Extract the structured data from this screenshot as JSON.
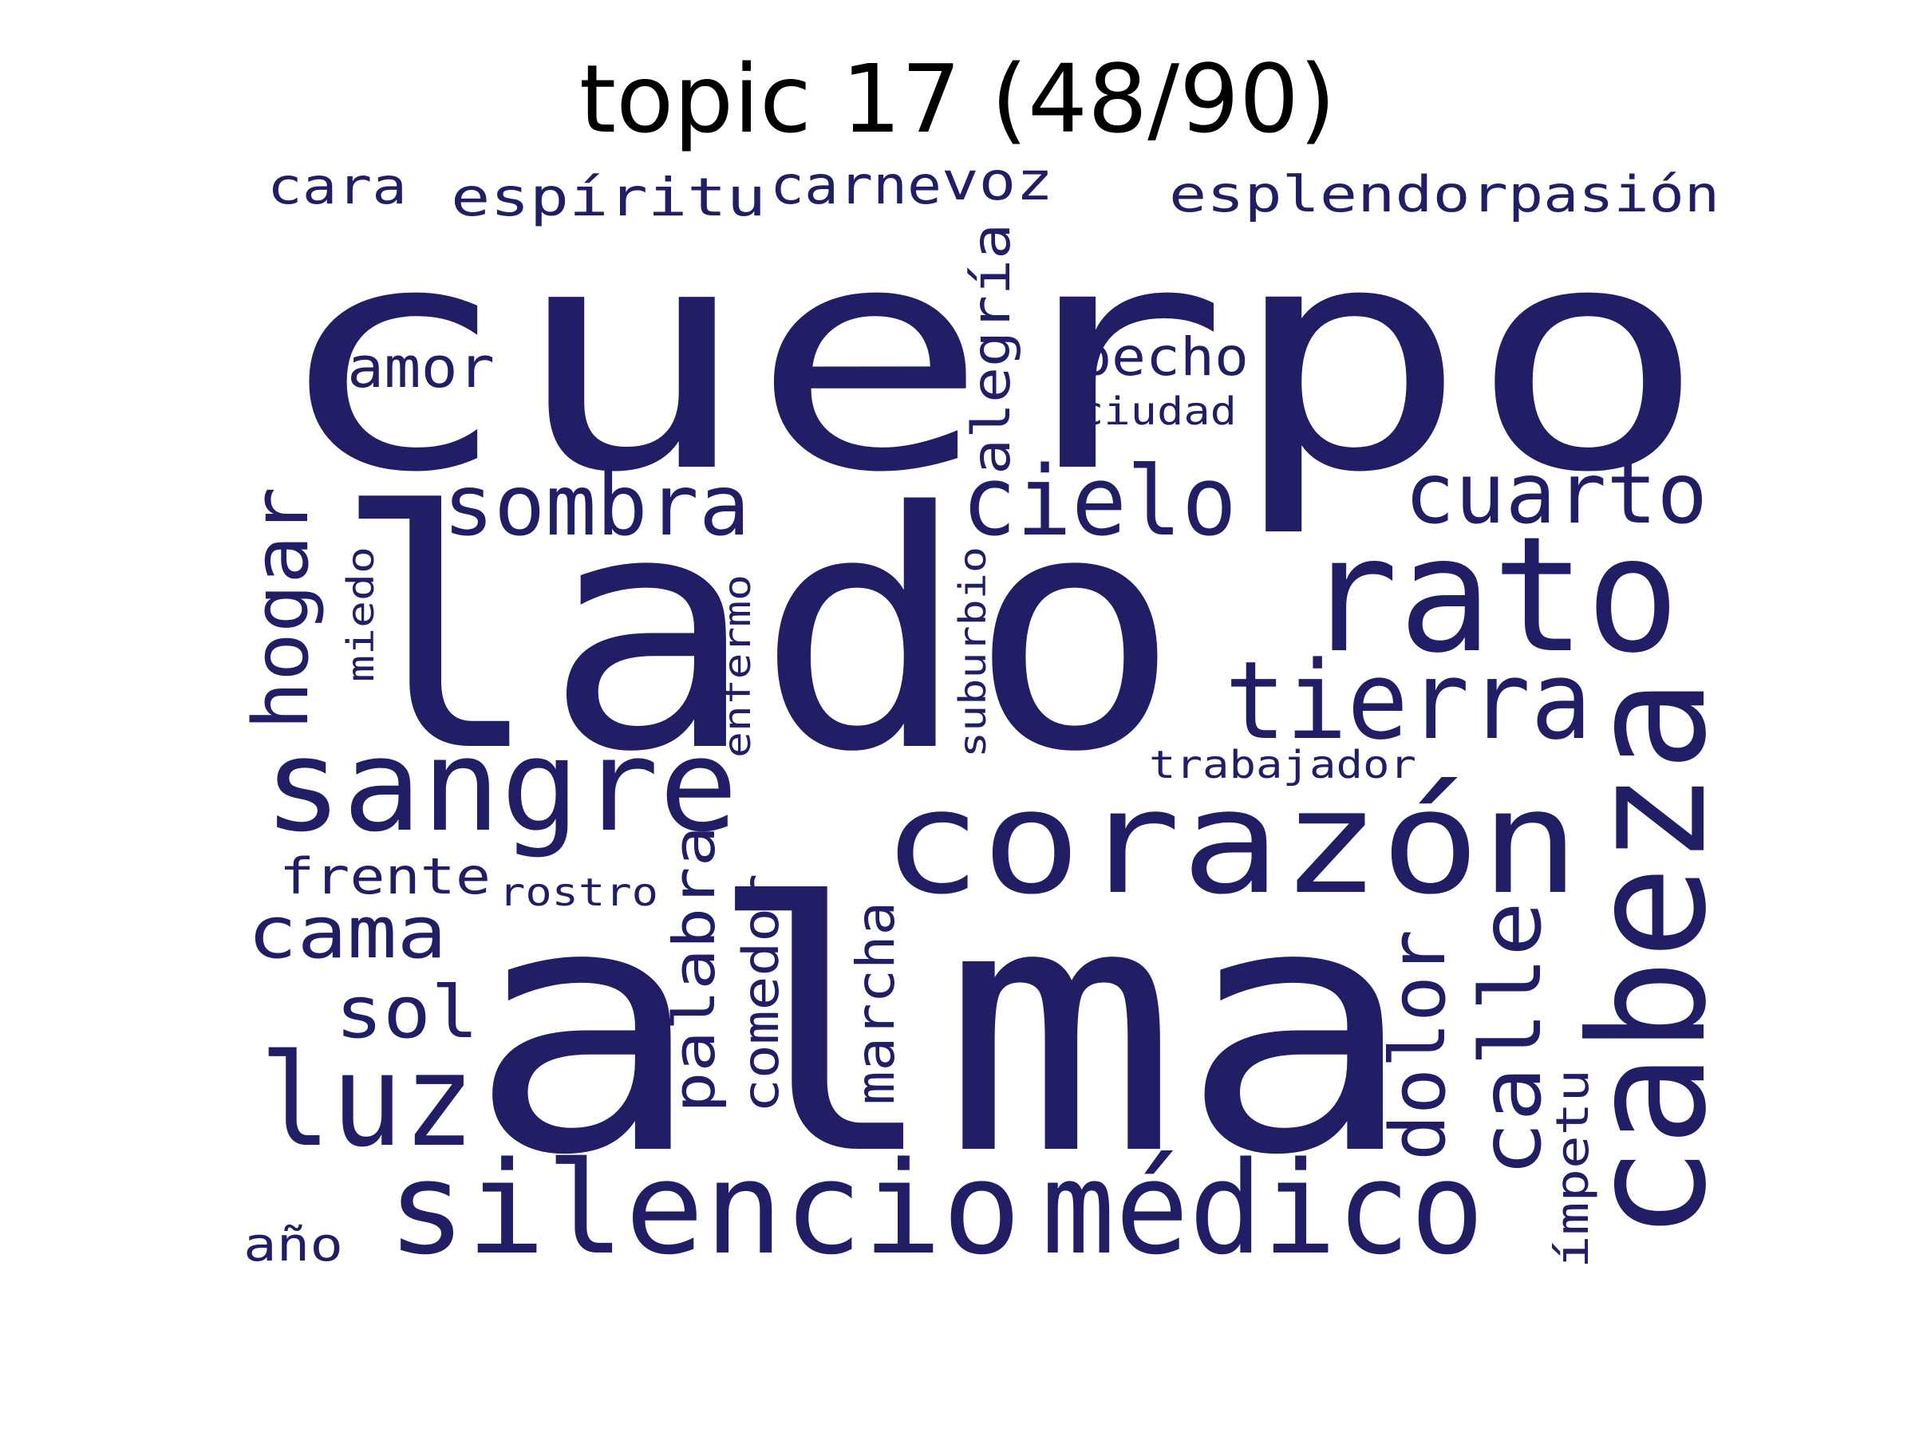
{
  "title": "topic 17 (48/90)",
  "word_color": "#221e66",
  "words": [
    {
      "text": "cuerpo"
    },
    {
      "text": "lado"
    },
    {
      "text": "alma"
    },
    {
      "text": "cabeza"
    },
    {
      "text": "corazón"
    },
    {
      "text": "rato"
    },
    {
      "text": "silencio"
    },
    {
      "text": "médico"
    },
    {
      "text": "sangre"
    },
    {
      "text": "tierra"
    },
    {
      "text": "cielo"
    },
    {
      "text": "cuarto"
    },
    {
      "text": "sombra"
    },
    {
      "text": "luz"
    },
    {
      "text": "calle"
    },
    {
      "text": "dolor"
    },
    {
      "text": "hogar"
    },
    {
      "text": "cama"
    },
    {
      "text": "sol"
    },
    {
      "text": "palabra"
    },
    {
      "text": "marcha"
    },
    {
      "text": "comedor"
    },
    {
      "text": "alegría"
    },
    {
      "text": "amor"
    },
    {
      "text": "pecho"
    },
    {
      "text": "espíritu"
    },
    {
      "text": "voz"
    },
    {
      "text": "carne"
    },
    {
      "text": "esplendor"
    },
    {
      "text": "pasión"
    },
    {
      "text": "cara"
    },
    {
      "text": "frente"
    },
    {
      "text": "ímpetu"
    },
    {
      "text": "año"
    },
    {
      "text": "enfermo"
    },
    {
      "text": "suburbio"
    },
    {
      "text": "miedo"
    },
    {
      "text": "ciudad"
    },
    {
      "text": "trabajador"
    },
    {
      "text": "rostro"
    }
  ]
}
